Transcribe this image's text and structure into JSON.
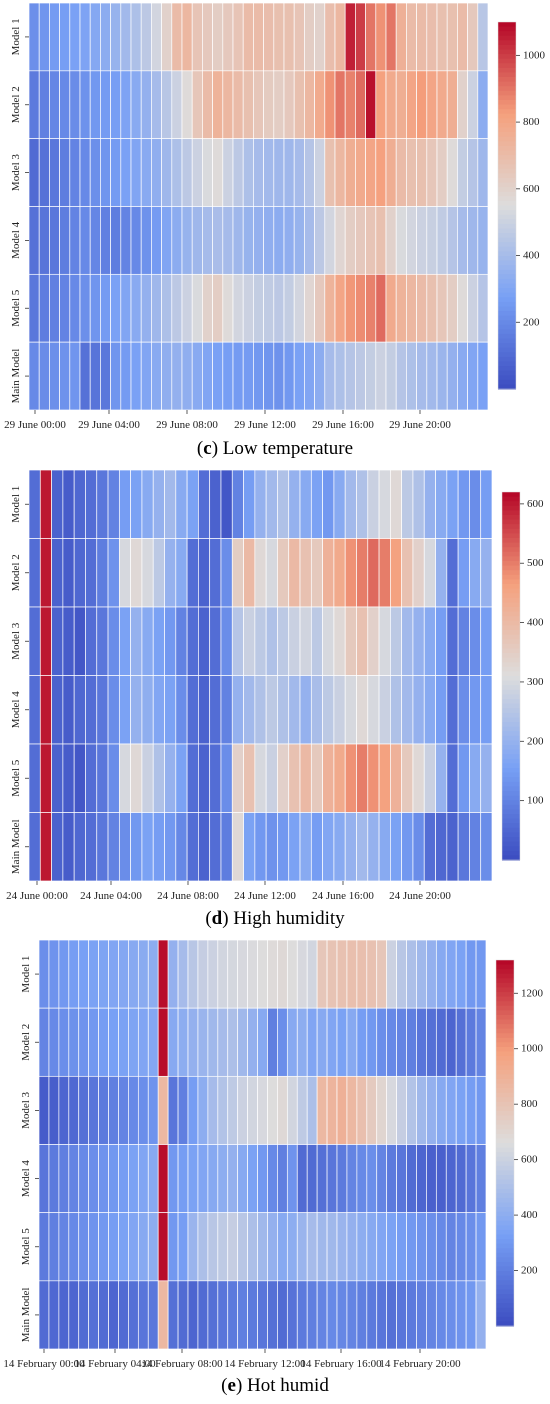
{
  "colors": {
    "low": "#3b4cc0",
    "mid": "#dddcdc",
    "high": "#b40426"
  },
  "chart_data": [
    {
      "type": "heatmap",
      "panel_letter": "c",
      "caption": "Low temperature",
      "rows": [
        "Model 1",
        "Model 2",
        "Model 3",
        "Model 4",
        "Model 5",
        "Main Model"
      ],
      "xtick_labels": [
        "29 June 00:00",
        "29 June 04:00",
        "29 June 08:00",
        "29 June 12:00",
        "29 June 16:00",
        "29 June 20:00"
      ],
      "colorbar_ticks": [
        200,
        400,
        600,
        800,
        1000
      ],
      "vmin": 0,
      "vmax": 1100,
      "values": [
        [
          220,
          240,
          260,
          270,
          280,
          290,
          310,
          330,
          360,
          390,
          420,
          460,
          520,
          600,
          700,
          720,
          660,
          640,
          620,
          640,
          660,
          700,
          700,
          690,
          680,
          680,
          660,
          620,
          600,
          690,
          720,
          1050,
          1000,
          900,
          850,
          900,
          750,
          700,
          700,
          690,
          680,
          680,
          700,
          640,
          450
        ],
        [
          150,
          170,
          190,
          200,
          210,
          230,
          250,
          260,
          270,
          290,
          320,
          350,
          400,
          450,
          500,
          560,
          650,
          700,
          740,
          720,
          700,
          680,
          650,
          630,
          620,
          640,
          680,
          720,
          780,
          850,
          900,
          880,
          920,
          1080,
          820,
          780,
          760,
          800,
          830,
          800,
          780,
          760,
          600,
          500,
          330
        ],
        [
          100,
          120,
          140,
          160,
          180,
          200,
          220,
          240,
          260,
          280,
          300,
          320,
          340,
          380,
          420,
          460,
          500,
          540,
          560,
          500,
          460,
          420,
          400,
          390,
          380,
          380,
          400,
          440,
          500,
          680,
          720,
          760,
          780,
          800,
          820,
          760,
          700,
          680,
          680,
          650,
          620,
          560,
          480,
          440,
          380
        ],
        [
          120,
          130,
          140,
          160,
          180,
          200,
          190,
          170,
          160,
          180,
          200,
          230,
          260,
          300,
          330,
          360,
          380,
          400,
          410,
          400,
          380,
          360,
          350,
          340,
          330,
          340,
          360,
          400,
          460,
          520,
          580,
          620,
          640,
          660,
          680,
          600,
          540,
          520,
          500,
          490,
          470,
          440,
          400,
          380,
          360
        ],
        [
          140,
          160,
          170,
          180,
          200,
          220,
          240,
          260,
          280,
          300,
          320,
          350,
          380,
          420,
          460,
          500,
          540,
          600,
          620,
          560,
          520,
          500,
          480,
          470,
          460,
          480,
          520,
          580,
          640,
          740,
          800,
          840,
          860,
          880,
          920,
          780,
          740,
          720,
          700,
          680,
          650,
          620,
          560,
          500,
          440
        ],
        [
          200,
          210,
          220,
          230,
          240,
          120,
          130,
          140,
          240,
          260,
          280,
          300,
          320,
          340,
          350,
          340,
          320,
          300,
          280,
          270,
          260,
          260,
          250,
          240,
          230,
          250,
          280,
          300,
          330,
          400,
          420,
          440,
          460,
          480,
          500,
          480,
          440,
          420,
          400,
          390,
          370,
          350,
          320,
          300,
          280
        ]
      ]
    },
    {
      "type": "heatmap",
      "panel_letter": "d",
      "caption": "High humidity",
      "rows": [
        "Model 1",
        "Model 2",
        "Model 3",
        "Model 4",
        "Model 5",
        "Main Model"
      ],
      "xtick_labels": [
        "24 June 00:00",
        "24 June 04:00",
        "24 June 08:00",
        "24 June 12:00",
        "24 June 16:00",
        "24 June 20:00"
      ],
      "colorbar_ticks": [
        100,
        200,
        300,
        400,
        500,
        600
      ],
      "vmin": 0,
      "vmax": 620,
      "values": [
        [
          60,
          600,
          40,
          30,
          50,
          60,
          80,
          100,
          150,
          160,
          180,
          200,
          220,
          180,
          160,
          60,
          40,
          20,
          100,
          150,
          200,
          220,
          240,
          200,
          180,
          160,
          140,
          180,
          220,
          240,
          280,
          300,
          320,
          260,
          240,
          200,
          180,
          160,
          140,
          120,
          150
        ],
        [
          60,
          600,
          40,
          30,
          50,
          60,
          90,
          130,
          300,
          320,
          300,
          260,
          200,
          180,
          60,
          40,
          60,
          120,
          350,
          400,
          320,
          300,
          360,
          400,
          380,
          360,
          420,
          440,
          480,
          500,
          520,
          500,
          460,
          380,
          340,
          300,
          200,
          60,
          150,
          180,
          200
        ],
        [
          60,
          600,
          40,
          30,
          20,
          60,
          80,
          120,
          160,
          200,
          180,
          160,
          140,
          100,
          60,
          40,
          60,
          120,
          250,
          280,
          260,
          240,
          260,
          280,
          290,
          260,
          300,
          320,
          360,
          380,
          340,
          300,
          260,
          220,
          200,
          180,
          150,
          60,
          100,
          120,
          150
        ],
        [
          60,
          600,
          40,
          30,
          50,
          60,
          80,
          120,
          160,
          200,
          190,
          170,
          160,
          120,
          60,
          40,
          60,
          100,
          200,
          220,
          240,
          260,
          240,
          220,
          200,
          230,
          260,
          280,
          300,
          320,
          300,
          280,
          240,
          220,
          200,
          180,
          150,
          60,
          120,
          140,
          150
        ],
        [
          60,
          600,
          40,
          30,
          20,
          60,
          80,
          120,
          300,
          320,
          280,
          240,
          200,
          160,
          60,
          40,
          60,
          120,
          340,
          380,
          300,
          280,
          340,
          380,
          400,
          360,
          420,
          440,
          480,
          500,
          480,
          460,
          420,
          360,
          320,
          280,
          200,
          60,
          140,
          180,
          200
        ],
        [
          60,
          600,
          40,
          30,
          50,
          60,
          80,
          100,
          120,
          140,
          160,
          150,
          140,
          110,
          60,
          40,
          60,
          90,
          320,
          160,
          140,
          130,
          140,
          160,
          180,
          150,
          170,
          180,
          200,
          220,
          200,
          180,
          160,
          140,
          120,
          60,
          50,
          40,
          80,
          100,
          120
        ]
      ]
    },
    {
      "type": "heatmap",
      "panel_letter": "e",
      "caption": "Hot humid",
      "rows": [
        "Model 1",
        "Model 2",
        "Model 3",
        "Model 4",
        "Model 5",
        "Main Model"
      ],
      "xtick_labels": [
        "14 February 00:00",
        "14 February 04:00",
        "14 February 08:00",
        "14 February 12:00",
        "14 February 16:00",
        "14 February 20:00"
      ],
      "colorbar_ticks": [
        200,
        400,
        600,
        800,
        1000,
        1200
      ],
      "vmin": 0,
      "vmax": 1320,
      "values": [
        [
          260,
          280,
          300,
          320,
          330,
          340,
          350,
          360,
          370,
          380,
          390,
          400,
          1300,
          420,
          480,
          540,
          580,
          600,
          620,
          630,
          640,
          650,
          660,
          670,
          680,
          660,
          640,
          620,
          780,
          800,
          810,
          820,
          820,
          810,
          780,
          600,
          540,
          500,
          460,
          420,
          380,
          360,
          340,
          300,
          300
        ],
        [
          220,
          240,
          260,
          270,
          280,
          300,
          320,
          330,
          340,
          350,
          360,
          370,
          1300,
          380,
          400,
          420,
          440,
          460,
          480,
          500,
          460,
          420,
          380,
          200,
          260,
          380,
          400,
          360,
          380,
          360,
          340,
          380,
          320,
          300,
          260,
          240,
          220,
          200,
          160,
          140,
          120,
          100,
          140,
          180,
          220
        ],
        [
          60,
          70,
          100,
          110,
          140,
          160,
          180,
          200,
          220,
          240,
          260,
          280,
          860,
          160,
          200,
          320,
          400,
          480,
          520,
          560,
          600,
          620,
          640,
          660,
          680,
          620,
          560,
          500,
          860,
          880,
          900,
          860,
          820,
          760,
          700,
          640,
          580,
          520,
          460,
          420,
          380,
          360,
          340,
          320,
          300
        ],
        [
          160,
          180,
          200,
          220,
          240,
          260,
          280,
          300,
          320,
          340,
          360,
          380,
          1300,
          300,
          320,
          340,
          360,
          380,
          400,
          420,
          380,
          340,
          300,
          240,
          200,
          280,
          120,
          120,
          140,
          160,
          180,
          220,
          240,
          260,
          220,
          180,
          160,
          120,
          100,
          80,
          80,
          100,
          120,
          160,
          200
        ],
        [
          180,
          200,
          220,
          240,
          260,
          280,
          300,
          320,
          340,
          360,
          380,
          400,
          1300,
          300,
          320,
          440,
          500,
          540,
          560,
          580,
          540,
          500,
          460,
          420,
          380,
          400,
          440,
          480,
          460,
          460,
          440,
          420,
          400,
          380,
          360,
          340,
          320,
          300,
          280,
          260,
          240,
          220,
          240,
          260,
          300
        ],
        [
          120,
          110,
          100,
          100,
          120,
          140,
          120,
          100,
          120,
          140,
          160,
          170,
          860,
          140,
          120,
          100,
          120,
          140,
          160,
          180,
          200,
          180,
          160,
          140,
          120,
          150,
          180,
          200,
          220,
          240,
          230,
          220,
          200,
          180,
          160,
          140,
          160,
          180,
          200,
          220,
          240,
          260,
          280,
          300,
          420
        ]
      ]
    }
  ]
}
